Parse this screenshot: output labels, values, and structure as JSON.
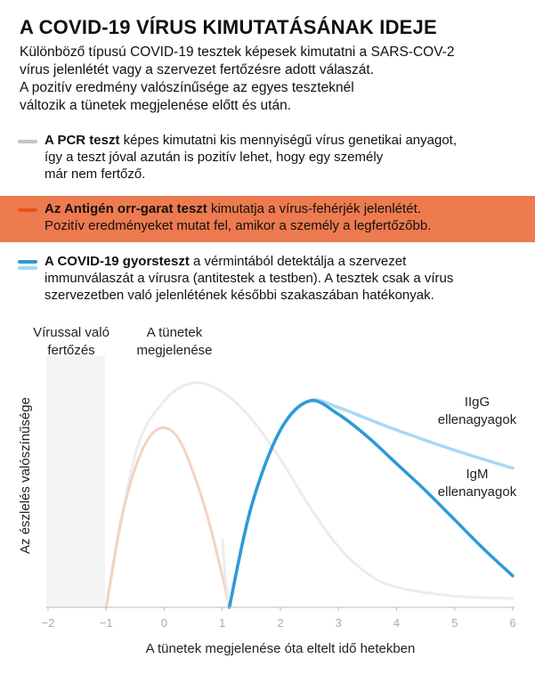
{
  "title": "A COVID-19 VÍRUS KIMUTATÁSÁNAK IDEJE",
  "intro_lines": [
    "Különböző típusú COVID-19 tesztek képesek kimutatni a SARS-COV-2",
    "vírus jelenlétét vagy a szervezet fertőzésre adott válaszát.",
    "A pozitív eredmény valószínűsége az egyes teszteknél",
    "változik a tünetek megjelenése előtt és után."
  ],
  "legend": {
    "pcr": {
      "color": "#c4c4cc",
      "name": "A PCR teszt",
      "line1_rest": " képes kimutatni kis mennyiségű vírus genetikai anyagot,",
      "line2": "így a teszt jóval azután is pozitív lehet, hogy egy személy",
      "line3": "már nem fertőző."
    },
    "antigen": {
      "color": "#e8531c",
      "name": "Az Antigén orr-garat teszt",
      "line1_rest": " kimutatja a vírus-fehérjék jelenlétét.",
      "line2": "Pozitív eredményeket mutat fel, amikor a személy a legfertőzőbb."
    },
    "rapid": {
      "color": "#2e9ad6",
      "color2": "#a6d9f3",
      "name": "A COVID-19 gyorsteszt",
      "line1_rest": " a vérmintából detektálja a szervezet",
      "line2": "immunválaszát a vírusra (antitestek a testben). A tesztek csak a vírus",
      "line3": "szervezetben való jelenlétének későbbi szakaszában hatékonyak."
    }
  },
  "chart_data": {
    "type": "line",
    "title": "",
    "xlabel": "A tünetek megjelenése óta eltelt idő hetekben",
    "ylabel": "Az észlelés valószínűsége",
    "xlim": [
      -2,
      6
    ],
    "ylim": [
      0,
      1
    ],
    "x_ticks": [
      "−2",
      "−1",
      "0",
      "1",
      "2",
      "3",
      "4",
      "5",
      "6"
    ],
    "annotations": {
      "infection": [
        "Vírussal való",
        "fertőzés"
      ],
      "symptoms": [
        "A tünetek",
        "megjelenése"
      ]
    },
    "series": [
      {
        "id": "pcr",
        "color": "#ececec",
        "x": [
          -1,
          -0.5,
          0,
          0.5,
          1,
          1.5,
          2,
          2.5,
          3,
          3.5,
          4,
          5,
          6
        ],
        "y": [
          0,
          0.68,
          0.92,
          1.0,
          0.96,
          0.84,
          0.66,
          0.45,
          0.27,
          0.15,
          0.09,
          0.05,
          0.04
        ]
      },
      {
        "id": "antigen",
        "color": "#f5d2c1",
        "x": [
          -1,
          -0.75,
          -0.5,
          -0.25,
          0,
          0.25,
          0.5,
          0.75,
          1,
          1.12
        ],
        "y": [
          0,
          0.38,
          0.62,
          0.76,
          0.8,
          0.75,
          0.6,
          0.4,
          0.14,
          0
        ]
      },
      {
        "id": "pcr-drop",
        "color": "#ececec",
        "x": [
          1,
          1.05,
          1.12
        ],
        "y": [
          0.3,
          0.14,
          0
        ]
      },
      {
        "id": "rapid-igg",
        "name": "IIgG ellenagyagok",
        "color": "#a6d9f3",
        "x": [
          1.12,
          1.5,
          2,
          2.5,
          3,
          3.5,
          4,
          5,
          6
        ],
        "y": [
          0,
          0.45,
          0.79,
          0.92,
          0.89,
          0.84,
          0.79,
          0.7,
          0.62
        ]
      },
      {
        "id": "rapid-igm",
        "name": "IgM ellenanyagok",
        "color": "#2e9ad6",
        "x": [
          1.12,
          1.5,
          2,
          2.5,
          3,
          3.5,
          4,
          4.5,
          5,
          5.5,
          6
        ],
        "y": [
          0,
          0.45,
          0.79,
          0.92,
          0.86,
          0.76,
          0.64,
          0.52,
          0.39,
          0.26,
          0.14
        ]
      }
    ],
    "labels": {
      "igg": [
        "IIgG",
        "ellenagyagok"
      ],
      "igm": [
        "IgM",
        "ellenanyagok"
      ]
    }
  }
}
